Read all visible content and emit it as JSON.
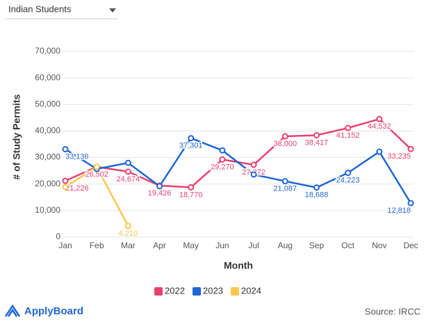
{
  "dropdown": {
    "label": "Indian Students"
  },
  "footer": {
    "brand": "ApplyBoard",
    "source": "Source: IRCC"
  },
  "chart_data": {
    "type": "line",
    "x_label": "Month",
    "y_label": "# of Study Permits",
    "categories": [
      "Jan",
      "Feb",
      "Mar",
      "Apr",
      "May",
      "Jun",
      "Jul",
      "Aug",
      "Sep",
      "Oct",
      "Nov",
      "Dec"
    ],
    "series": [
      {
        "name": "2022",
        "color": "#e8416f",
        "values": [
          21226,
          26502,
          24674,
          19426,
          18770,
          29270,
          27272,
          38000,
          38417,
          41152,
          44532,
          33235
        ],
        "value_labels": [
          "21,226",
          "26,502",
          "24,674",
          "19,426",
          "18,770",
          "29,270",
          "27,272",
          "38,000",
          "38,417",
          "41,152",
          "44,532",
          "33,235"
        ]
      },
      {
        "name": "2023",
        "color": "#1f66d6",
        "values": [
          33136,
          25700,
          28000,
          19200,
          37301,
          32700,
          23600,
          21087,
          18688,
          24223,
          32200,
          12818
        ],
        "value_labels": [
          "33,136",
          null,
          null,
          null,
          "37,301",
          null,
          null,
          "21,087",
          "18,688",
          "24,223",
          null,
          "12,818"
        ]
      },
      {
        "name": "2024",
        "color": "#f9c74f",
        "values": [
          18900,
          26500,
          4210,
          null,
          null,
          null,
          null,
          null,
          null,
          null,
          null,
          null
        ],
        "value_labels": [
          null,
          null,
          "4,210",
          null,
          null,
          null,
          null,
          null,
          null,
          null,
          null,
          null
        ]
      }
    ],
    "ylim": [
      0,
      70000
    ],
    "yticks": [
      0,
      {
        "value": 10000,
        "label": "10,000"
      },
      {
        "value": 20000,
        "label": "20,000"
      },
      {
        "value": 30000,
        "label": "30,000"
      },
      {
        "value": 40000,
        "label": "40,000"
      },
      {
        "value": 50000,
        "label": "50,000"
      },
      {
        "value": 60000,
        "label": "60,000"
      },
      {
        "value": 70000,
        "label": "70,000"
      }
    ],
    "grid": true,
    "legend": "bottom"
  }
}
